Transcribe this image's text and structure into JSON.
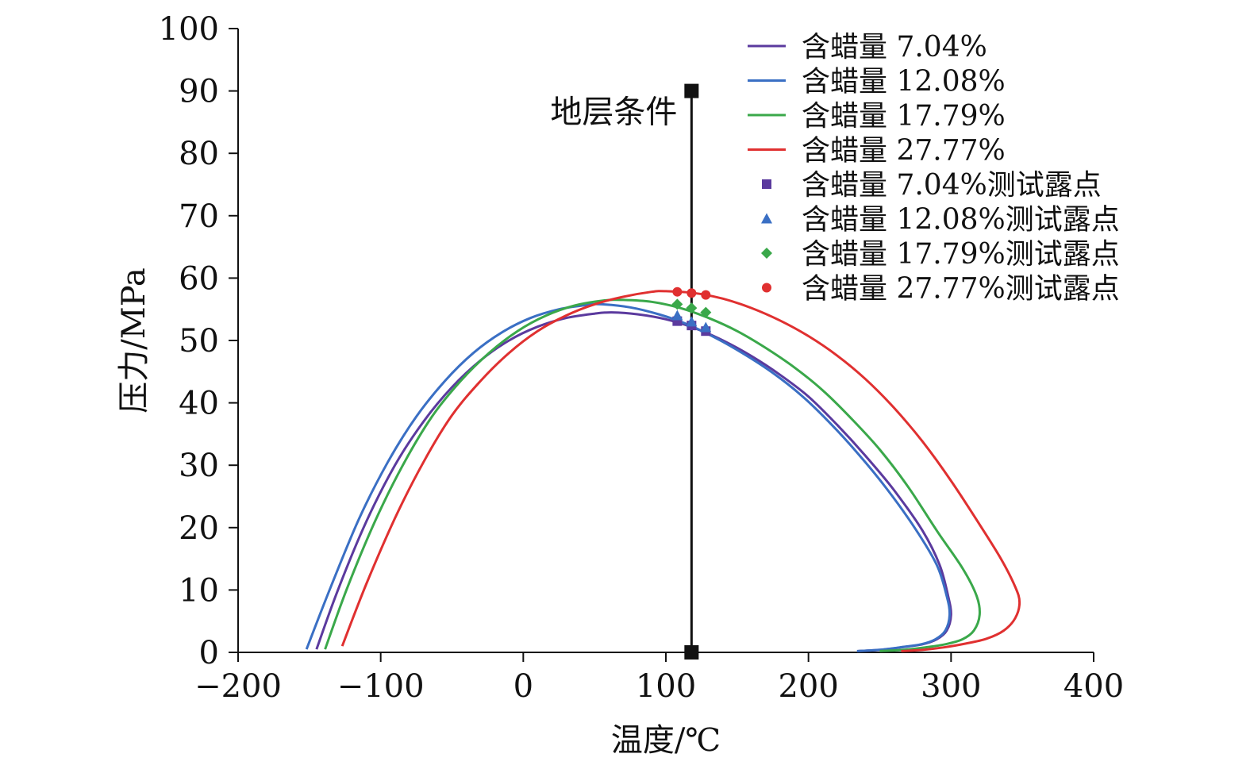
{
  "chart_data": {
    "type": "line",
    "title": "",
    "xlabel": "温度/℃",
    "ylabel": "压力/MPa",
    "xlim": [
      -200,
      400
    ],
    "ylim": [
      0,
      100
    ],
    "x_ticks": [
      -200,
      -100,
      0,
      100,
      200,
      300,
      400
    ],
    "y_ticks": [
      0,
      10,
      20,
      30,
      40,
      50,
      60,
      70,
      80,
      90,
      100
    ],
    "x_tick_labels": [
      "−200",
      "−100",
      "0",
      "100",
      "200",
      "300",
      "400"
    ],
    "y_tick_labels": [
      "0",
      "10",
      "20",
      "30",
      "40",
      "50",
      "60",
      "70",
      "80",
      "90",
      "100"
    ],
    "legend_position": "top-right",
    "grid": false,
    "series": [
      {
        "name": "含蜡量 7.04%",
        "color": "#5b3a9e",
        "x": [
          -145,
          -130,
          -110,
          -90,
          -70,
          -50,
          -30,
          -10,
          10,
          30,
          50,
          62,
          80,
          100,
          120,
          140,
          160,
          180,
          200,
          220,
          240,
          260,
          280,
          292,
          298,
          300,
          297,
          290,
          280,
          265,
          250,
          235
        ],
        "y": [
          0.5,
          10,
          21,
          30,
          37,
          42.5,
          46.8,
          50,
          52.2,
          53.6,
          54.3,
          54.5,
          54.2,
          53.4,
          52,
          50,
          47.5,
          44.5,
          41,
          36.5,
          31.5,
          26,
          19.5,
          14,
          9,
          6,
          3.5,
          2.1,
          1.3,
          0.8,
          0.4,
          0.2
        ]
      },
      {
        "name": "含蜡量 12.08%",
        "color": "#3a6fc4",
        "x": [
          -152,
          -135,
          -115,
          -95,
          -75,
          -55,
          -35,
          -15,
          5,
          25,
          45,
          55,
          75,
          95,
          115,
          135,
          155,
          175,
          195,
          215,
          235,
          255,
          275,
          290,
          297,
          299,
          296,
          289,
          279,
          264,
          249,
          234
        ],
        "y": [
          0.5,
          10.5,
          21.5,
          30.5,
          37.8,
          43.5,
          48,
          51.3,
          53.6,
          55,
          55.7,
          55.8,
          55.3,
          54.2,
          52.6,
          50.4,
          47.8,
          44.8,
          41.2,
          36.8,
          31.8,
          26.2,
          19.8,
          14,
          9,
          6,
          3.5,
          2.1,
          1.3,
          0.8,
          0.4,
          0.2
        ]
      },
      {
        "name": "含蜡量 17.79%",
        "color": "#3aa84a",
        "x": [
          -139,
          -124,
          -104,
          -84,
          -64,
          -44,
          -24,
          -4,
          16,
          36,
          56,
          70,
          90,
          110,
          130,
          150,
          170,
          190,
          210,
          230,
          250,
          270,
          290,
          308,
          318,
          320,
          316,
          308,
          296,
          282,
          266,
          250
        ],
        "y": [
          0.5,
          10,
          21,
          30.2,
          37.8,
          43.5,
          48,
          51.5,
          54,
          55.6,
          56.4,
          56.5,
          56.2,
          55.2,
          53.6,
          51.5,
          48.8,
          45.7,
          42,
          37.5,
          32.5,
          26.5,
          19.5,
          13.5,
          9,
          6,
          3.5,
          2.1,
          1.3,
          0.8,
          0.4,
          0.2
        ]
      },
      {
        "name": "含蜡量 27.77%",
        "color": "#e03030",
        "x": [
          -127,
          -110,
          -90,
          -70,
          -50,
          -30,
          -10,
          10,
          30,
          50,
          70,
          90,
          100,
          120,
          140,
          160,
          180,
          200,
          220,
          240,
          260,
          280,
          300,
          320,
          335,
          345,
          348,
          345,
          337,
          325,
          310,
          295,
          280,
          265
        ],
        "y": [
          1,
          11,
          21.5,
          30.5,
          38,
          43.5,
          48,
          51.5,
          54,
          55.8,
          57,
          57.8,
          57.9,
          57.6,
          56.7,
          55.2,
          53.2,
          50.7,
          47.6,
          43.8,
          39.2,
          33.8,
          27.5,
          20.5,
          15,
          10.5,
          8,
          5.5,
          3.5,
          2.2,
          1.4,
          0.8,
          0.4,
          0.2
        ]
      }
    ],
    "markers": [
      {
        "name": "含蜡量 7.04%测试露点",
        "shape": "square",
        "color": "#5b3a9e",
        "x": [
          108,
          118,
          128
        ],
        "y": [
          53.1,
          52.4,
          51.5
        ]
      },
      {
        "name": "含蜡量 12.08%测试露点",
        "shape": "triangle",
        "color": "#3a6fc4",
        "x": [
          108,
          118,
          128
        ],
        "y": [
          54,
          53,
          52.1
        ]
      },
      {
        "name": "含蜡量 17.79%测试露点",
        "shape": "diamond",
        "color": "#3aa84a",
        "x": [
          108,
          118,
          128
        ],
        "y": [
          55.8,
          55.2,
          54.5
        ]
      },
      {
        "name": "含蜡量 27.77%测试露点",
        "shape": "circle",
        "color": "#e03030",
        "x": [
          108,
          118,
          128
        ],
        "y": [
          57.8,
          57.6,
          57.3
        ]
      }
    ],
    "reference_line": {
      "label": "地层条件",
      "x": 118,
      "y_from": 0,
      "y_to": 90,
      "color": "#111111"
    }
  }
}
